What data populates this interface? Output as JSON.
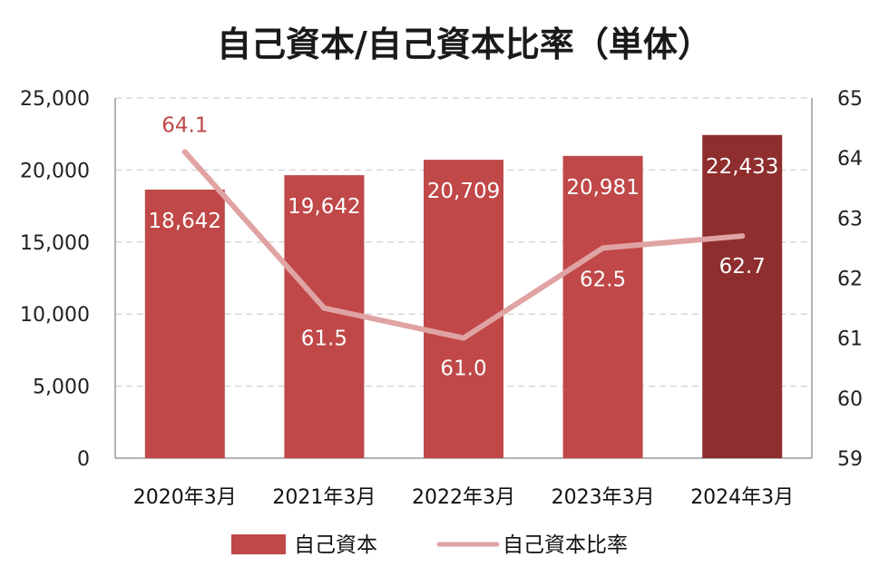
{
  "chart_data": {
    "type": "bar",
    "title": "自己資本/自己資本比率（単体）",
    "categories": [
      "2020年3月",
      "2021年3月",
      "2022年3月",
      "2023年3月",
      "2024年3月"
    ],
    "series": [
      {
        "name": "自己資本",
        "type": "bar",
        "axis": "left",
        "values": [
          18642,
          19642,
          20709,
          20981,
          22433
        ],
        "labels": [
          "18,642",
          "19,642",
          "20,709",
          "20,981",
          "22,433"
        ]
      },
      {
        "name": "自己資本比率",
        "type": "line",
        "axis": "right",
        "values": [
          64.1,
          61.5,
          61.0,
          62.5,
          62.7
        ],
        "labels": [
          "64.1",
          "61.5",
          "61.0",
          "62.5",
          "62.7"
        ]
      }
    ],
    "left_axis": {
      "ylim": [
        0,
        25000
      ],
      "ticks": [
        0,
        5000,
        10000,
        15000,
        20000,
        25000
      ],
      "tick_labels": [
        "0",
        "5,000",
        "10,000",
        "15,000",
        "20,000",
        "25,000"
      ]
    },
    "right_axis": {
      "ylim": [
        59,
        65
      ],
      "ticks": [
        59,
        60,
        61,
        62,
        63,
        64,
        65
      ],
      "tick_labels": [
        "59",
        "60",
        "61",
        "62",
        "63",
        "64",
        "65"
      ]
    },
    "grid": "horizontal dashed",
    "legend_position": "bottom",
    "colors": {
      "bar": "#c04848",
      "bar_highlight": "#8f2e2e",
      "line": "#e0a3a3",
      "ratio_label_top": "#c04848",
      "ratio_label_inside": "#ffffff",
      "grid": "#d9d9d9",
      "axis": "#9a9a9a"
    }
  }
}
